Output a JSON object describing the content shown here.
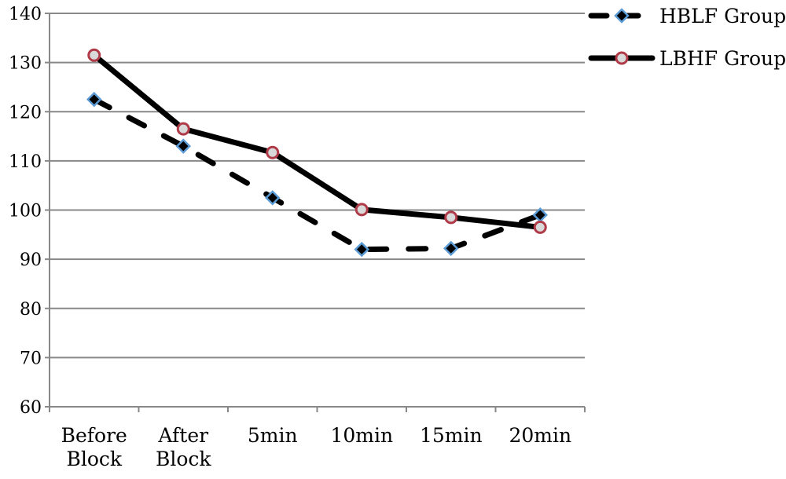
{
  "chart_data": {
    "type": "line",
    "categories": [
      [
        "Before",
        "Block"
      ],
      [
        "After",
        "Block"
      ],
      [
        "5min"
      ],
      [
        "10min"
      ],
      [
        "15min"
      ],
      [
        "20min"
      ]
    ],
    "ylim": [
      60,
      140
    ],
    "yticks": [
      60,
      70,
      80,
      90,
      100,
      110,
      120,
      130,
      140
    ],
    "grid": true,
    "legend_position": "top-right",
    "series": [
      {
        "name": "HBLF Group",
        "values": [
          122.5,
          113,
          102.5,
          92,
          92.2,
          99
        ],
        "line_style": "dashed",
        "line_color": "#000000",
        "marker": "diamond",
        "marker_fill": "#000000",
        "marker_edge": "#5b9bd5"
      },
      {
        "name": "LBHF Group",
        "values": [
          131.5,
          116.5,
          111.7,
          100.1,
          98.5,
          96.5
        ],
        "line_style": "solid",
        "line_color": "#000000",
        "marker": "circle",
        "marker_fill": "#d9d9d9",
        "marker_edge": "#b03a48"
      }
    ]
  }
}
